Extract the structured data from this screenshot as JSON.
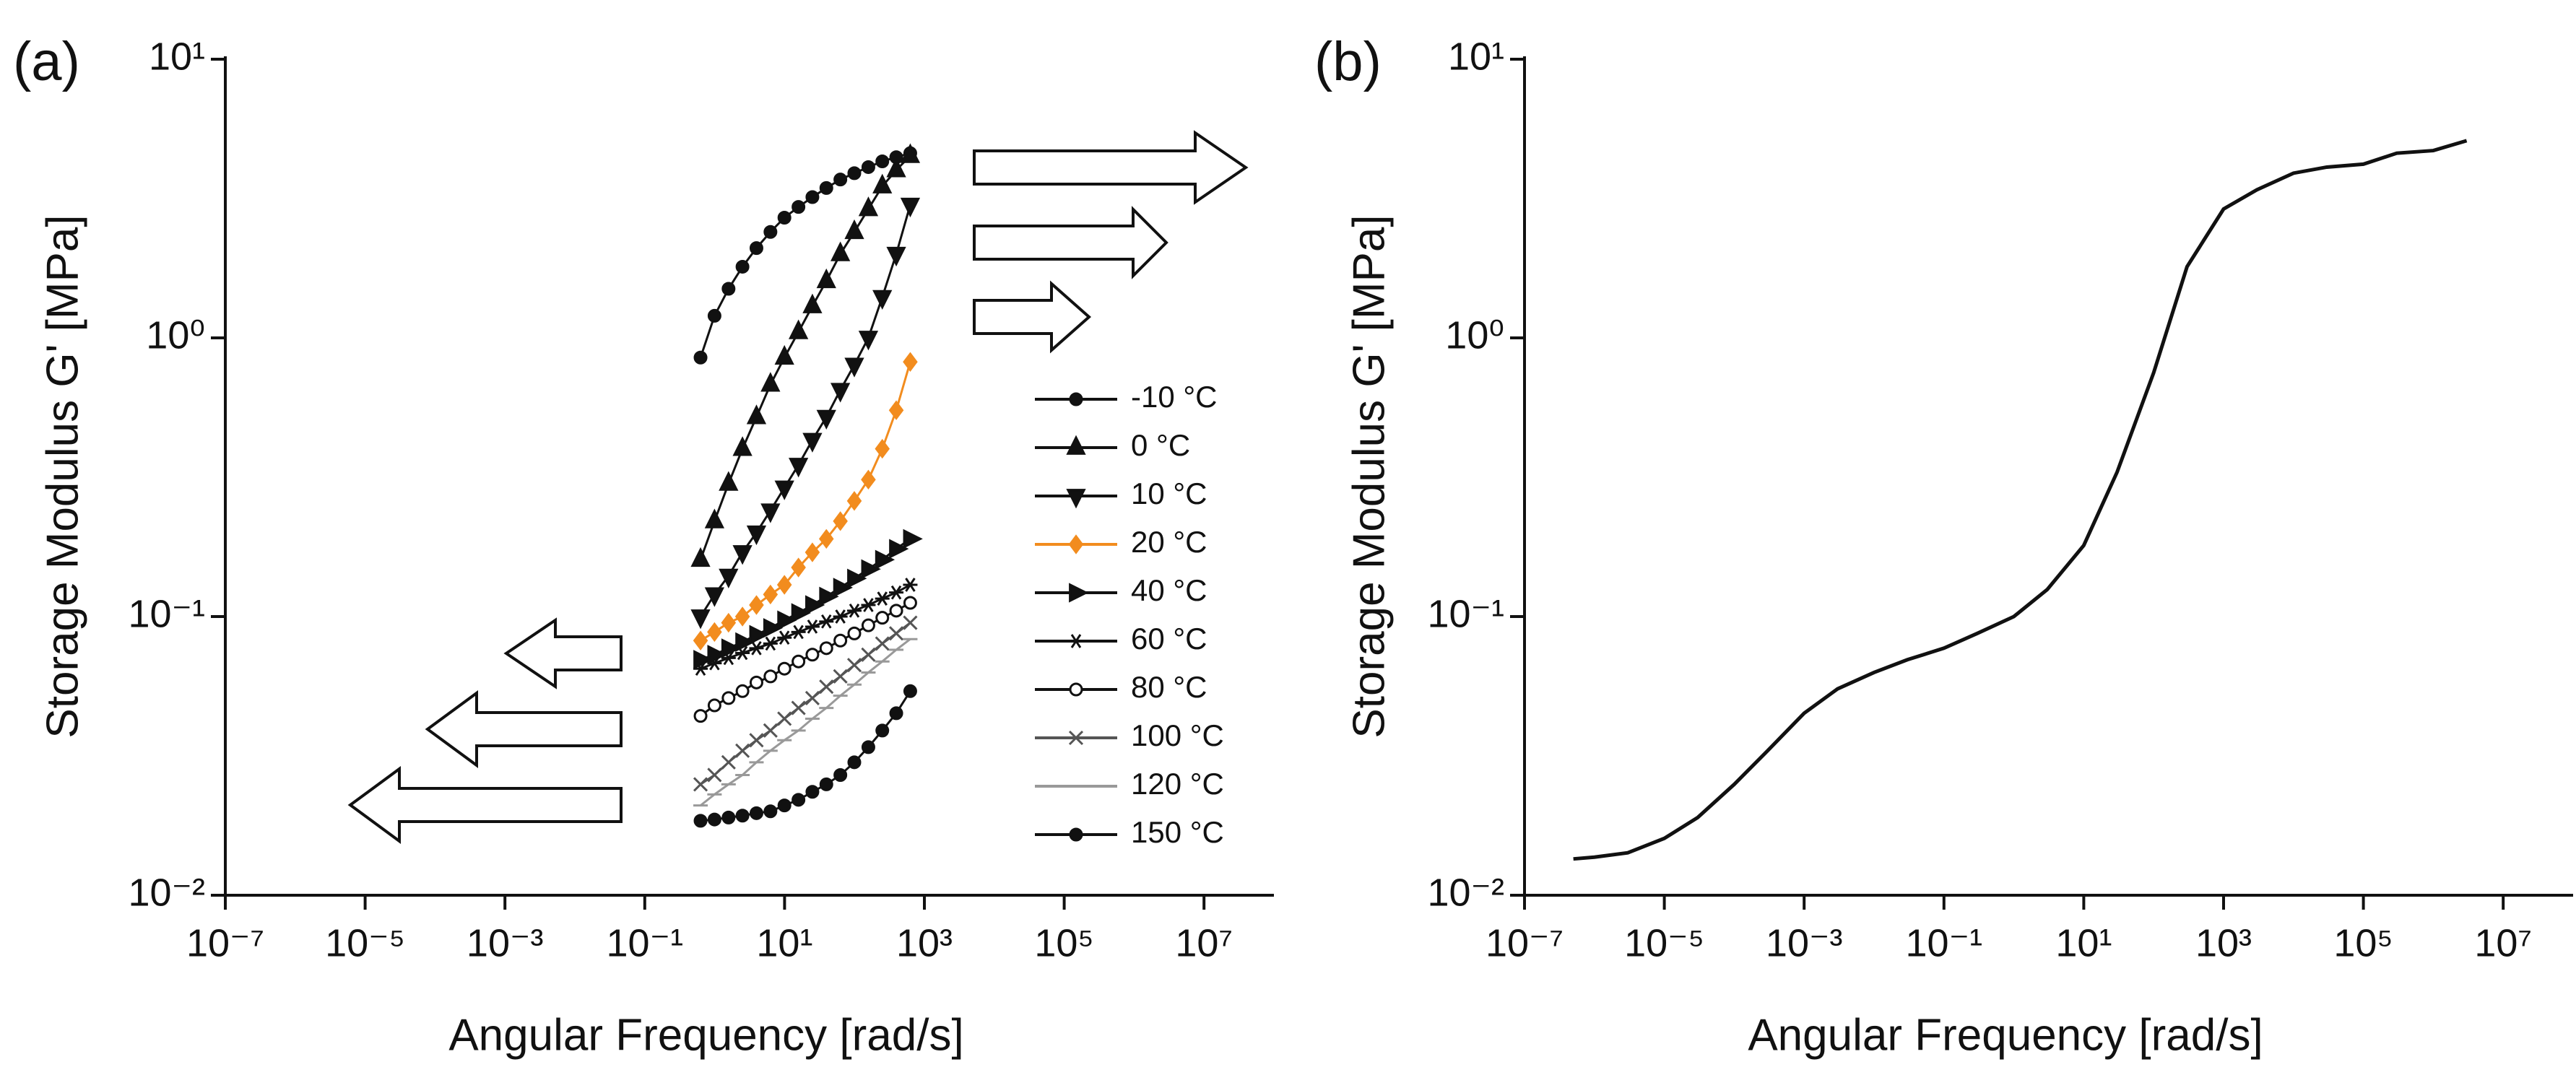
{
  "chart_data": [
    {
      "type": "line",
      "panel_label": "(a)",
      "xlabel": "Angular Frequency [rad/s]",
      "ylabel": "Storage Modulus G' [MPa]",
      "log_x": true,
      "log_y": true,
      "xlim": [
        1e-07,
        100000000.0
      ],
      "ylim": [
        0.01,
        10
      ],
      "xticks": [
        {
          "value": 1e-07,
          "label": "10⁻⁷"
        },
        {
          "value": 1e-05,
          "label": "10⁻⁵"
        },
        {
          "value": 0.001,
          "label": "10⁻³"
        },
        {
          "value": 0.1,
          "label": "10⁻¹"
        },
        {
          "value": 10,
          "label": "10¹"
        },
        {
          "value": 1000,
          "label": "10³"
        },
        {
          "value": 100000,
          "label": "10⁵"
        },
        {
          "value": 10000000,
          "label": "10⁷"
        }
      ],
      "yticks": [
        {
          "value": 0.01,
          "label": "10⁻²"
        },
        {
          "value": 0.1,
          "label": "10⁻¹"
        },
        {
          "value": 1,
          "label": "10⁰"
        },
        {
          "value": 10,
          "label": "10¹"
        }
      ],
      "legend": "right",
      "x": [
        0.628,
        0.995,
        1.58,
        2.5,
        3.96,
        6.28,
        9.95,
        15.8,
        25,
        39.6,
        62.8,
        99.5,
        158,
        250,
        396,
        628
      ],
      "series": [
        {
          "name": "-10 °C",
          "color": "#111111",
          "marker": "circle",
          "values": [
            0.85,
            1.2,
            1.5,
            1.8,
            2.1,
            2.4,
            2.7,
            2.95,
            3.2,
            3.45,
            3.7,
            3.9,
            4.1,
            4.3,
            4.45,
            4.6
          ]
        },
        {
          "name": "0 °C",
          "color": "#111111",
          "marker": "triangle-up",
          "values": [
            0.16,
            0.22,
            0.3,
            0.4,
            0.52,
            0.68,
            0.85,
            1.05,
            1.3,
            1.6,
            2.0,
            2.4,
            2.9,
            3.5,
            4.0,
            4.5
          ]
        },
        {
          "name": "10 °C",
          "color": "#111111",
          "marker": "triangle-down",
          "values": [
            0.1,
            0.12,
            0.14,
            0.17,
            0.2,
            0.24,
            0.29,
            0.35,
            0.43,
            0.52,
            0.65,
            0.8,
            1.0,
            1.4,
            2.0,
            3.0
          ]
        },
        {
          "name": "20 °C",
          "color": "#f28c1e",
          "marker": "diamond",
          "values": [
            0.082,
            0.088,
            0.095,
            0.1,
            0.11,
            0.12,
            0.13,
            0.15,
            0.17,
            0.19,
            0.22,
            0.26,
            0.31,
            0.4,
            0.55,
            0.82
          ]
        },
        {
          "name": "40 °C",
          "color": "#111111",
          "marker": "triangle-right",
          "values": [
            0.07,
            0.073,
            0.077,
            0.081,
            0.086,
            0.091,
            0.097,
            0.103,
            0.11,
            0.118,
            0.127,
            0.137,
            0.148,
            0.16,
            0.175,
            0.19
          ]
        },
        {
          "name": "60 °C",
          "color": "#111111",
          "marker": "star",
          "values": [
            0.065,
            0.068,
            0.071,
            0.074,
            0.077,
            0.08,
            0.084,
            0.088,
            0.092,
            0.096,
            0.1,
            0.105,
            0.11,
            0.116,
            0.122,
            0.13
          ]
        },
        {
          "name": "80 °C",
          "color": "#111111",
          "marker": "half-circle",
          "values": [
            0.044,
            0.048,
            0.051,
            0.054,
            0.058,
            0.061,
            0.065,
            0.069,
            0.073,
            0.077,
            0.082,
            0.087,
            0.093,
            0.099,
            0.105,
            0.112
          ]
        },
        {
          "name": "100 °C",
          "color": "#555555",
          "marker": "x",
          "values": [
            0.025,
            0.027,
            0.03,
            0.033,
            0.036,
            0.039,
            0.043,
            0.047,
            0.051,
            0.056,
            0.061,
            0.067,
            0.073,
            0.08,
            0.087,
            0.095
          ]
        },
        {
          "name": "120 °C",
          "color": "#999999",
          "marker": "dash",
          "values": [
            0.021,
            0.023,
            0.025,
            0.027,
            0.03,
            0.033,
            0.036,
            0.039,
            0.043,
            0.047,
            0.052,
            0.057,
            0.063,
            0.069,
            0.076,
            0.083
          ]
        },
        {
          "name": "150 °C",
          "color": "#111111",
          "marker": "circle",
          "values": [
            0.0185,
            0.0187,
            0.019,
            0.0193,
            0.0197,
            0.02,
            0.021,
            0.022,
            0.0235,
            0.025,
            0.027,
            0.03,
            0.034,
            0.039,
            0.045,
            0.054
          ]
        }
      ]
    },
    {
      "type": "line",
      "panel_label": "(b)",
      "xlabel": "Angular Frequency [rad/s]",
      "ylabel": "Storage Modulus G' [MPa]",
      "log_x": true,
      "log_y": true,
      "xlim": [
        1e-07,
        100000000.0
      ],
      "ylim": [
        0.01,
        10
      ],
      "xticks": [
        {
          "value": 1e-07,
          "label": "10⁻⁷"
        },
        {
          "value": 1e-05,
          "label": "10⁻⁵"
        },
        {
          "value": 0.001,
          "label": "10⁻³"
        },
        {
          "value": 0.1,
          "label": "10⁻¹"
        },
        {
          "value": 10,
          "label": "10¹"
        },
        {
          "value": 1000,
          "label": "10³"
        },
        {
          "value": 100000,
          "label": "10⁵"
        },
        {
          "value": 10000000,
          "label": "10⁷"
        }
      ],
      "yticks": [
        {
          "value": 0.01,
          "label": "10⁻²"
        },
        {
          "value": 0.1,
          "label": "10⁻¹"
        },
        {
          "value": 1,
          "label": "10⁰"
        },
        {
          "value": 10,
          "label": "10¹"
        }
      ],
      "x": [
        5e-07,
        1e-06,
        3e-06,
        1e-05,
        3e-05,
        0.0001,
        0.0003,
        0.001,
        0.003,
        0.01,
        0.03,
        0.1,
        0.3,
        1,
        3,
        10,
        30,
        100,
        300,
        1000,
        3000,
        10000,
        30000,
        100000,
        300000,
        1000000,
        3000000
      ],
      "series": [
        {
          "color": "#111111",
          "values": [
            0.0135,
            0.0137,
            0.0142,
            0.016,
            0.019,
            0.025,
            0.033,
            0.045,
            0.055,
            0.063,
            0.07,
            0.077,
            0.087,
            0.1,
            0.125,
            0.18,
            0.33,
            0.75,
            1.8,
            2.9,
            3.4,
            3.9,
            4.1,
            4.2,
            4.6,
            4.7,
            5.1
          ]
        }
      ]
    }
  ]
}
